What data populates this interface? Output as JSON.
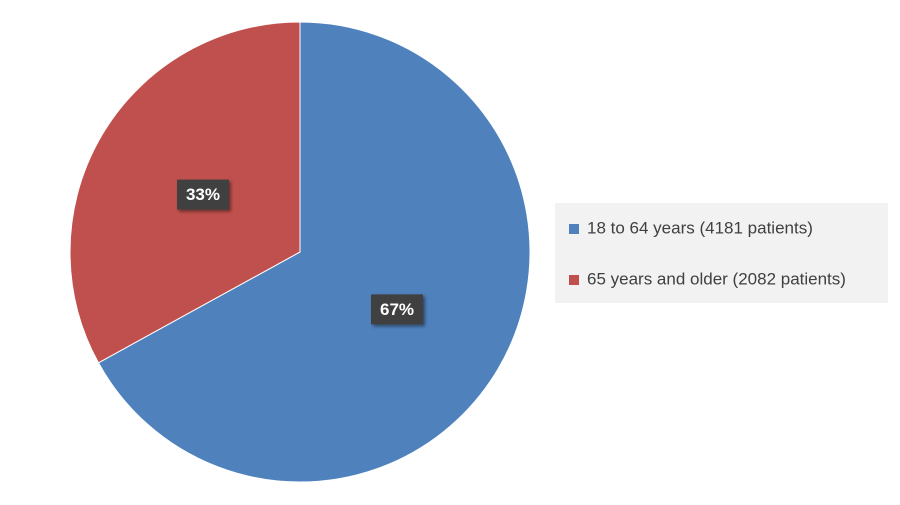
{
  "chart_data": {
    "type": "pie",
    "categories": [
      "18 to 64 years (4181 patients)",
      "65 years and older (2082 patients)"
    ],
    "values": [
      67,
      33
    ],
    "value_labels": [
      "67%",
      "33%"
    ],
    "colors": [
      "#4f81bd",
      "#c0504d"
    ],
    "legend": "right"
  }
}
